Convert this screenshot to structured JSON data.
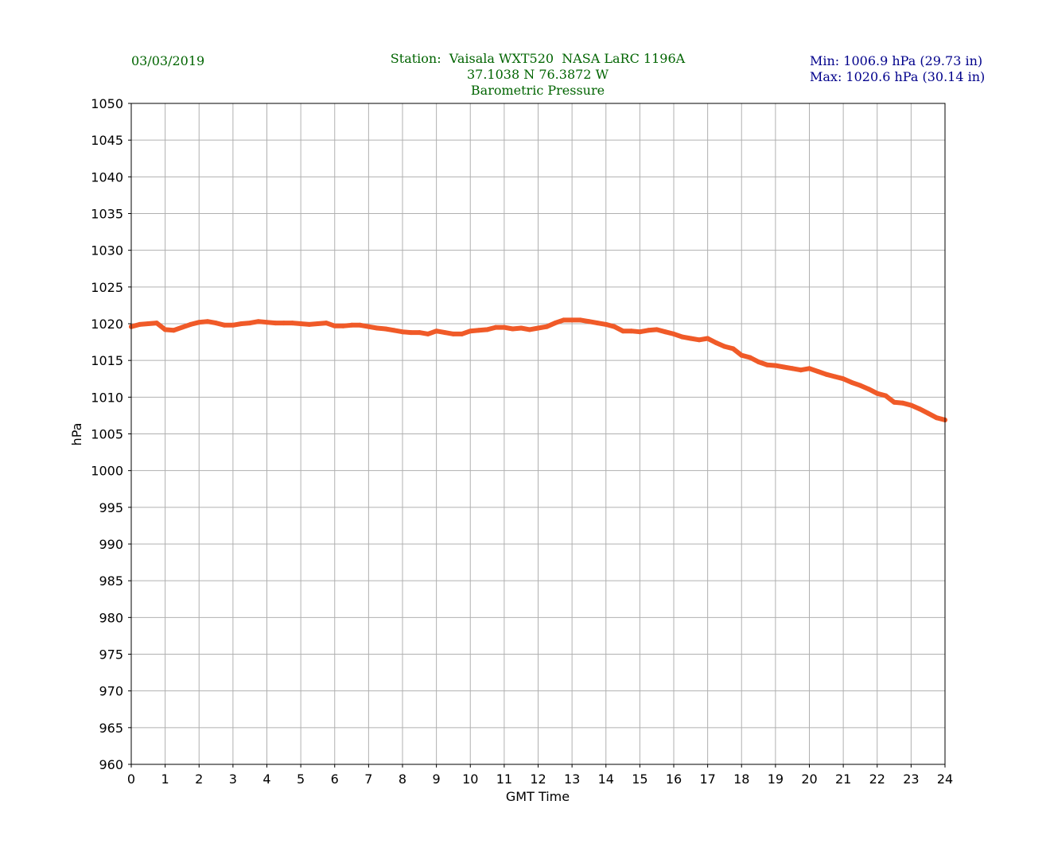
{
  "header": {
    "date": "03/03/2019",
    "station_line": "Station:  Vaisala WXT520  NASA LaRC 1196A",
    "coords_line": "37.1038 N 76.3872 W",
    "variable_line": "Barometric Pressure",
    "min_line": "Min: 1006.9 hPa (29.73 in)",
    "max_line": "Max: 1020.6 hPa (30.14 in)"
  },
  "colors": {
    "series": "#f05a28",
    "header_green": "#006400",
    "header_navy": "#00008b",
    "grid": "#b0b0b0"
  },
  "chart_data": {
    "type": "line",
    "xlabel": "GMT Time",
    "ylabel": "hPa",
    "xlim": [
      0,
      24
    ],
    "ylim": [
      960,
      1050
    ],
    "xticks": [
      0,
      1,
      2,
      3,
      4,
      5,
      6,
      7,
      8,
      9,
      10,
      11,
      12,
      13,
      14,
      15,
      16,
      17,
      18,
      19,
      20,
      21,
      22,
      23,
      24
    ],
    "yticks": [
      960,
      965,
      970,
      975,
      980,
      985,
      990,
      995,
      1000,
      1005,
      1010,
      1015,
      1020,
      1025,
      1030,
      1035,
      1040,
      1045,
      1050
    ],
    "grid": true,
    "series": [
      {
        "x": [
          0,
          0.25,
          0.5,
          0.75,
          1,
          1.25,
          1.5,
          1.75,
          2,
          2.25,
          2.5,
          2.75,
          3,
          3.25,
          3.5,
          3.75,
          4,
          4.25,
          4.5,
          4.75,
          5,
          5.25,
          5.5,
          5.75,
          6,
          6.25,
          6.5,
          6.75,
          7,
          7.25,
          7.5,
          7.75,
          8,
          8.25,
          8.5,
          8.75,
          9,
          9.25,
          9.5,
          9.75,
          10,
          10.25,
          10.5,
          10.75,
          11,
          11.25,
          11.5,
          11.75,
          12,
          12.25,
          12.5,
          12.75,
          13,
          13.25,
          13.5,
          13.75,
          14,
          14.25,
          14.5,
          14.75,
          15,
          15.25,
          15.5,
          15.75,
          16,
          16.25,
          16.5,
          16.75,
          17,
          17.25,
          17.5,
          17.75,
          18,
          18.25,
          18.5,
          18.75,
          19,
          19.25,
          19.5,
          19.75,
          20,
          20.25,
          20.5,
          20.75,
          21,
          21.25,
          21.5,
          21.75,
          22,
          22.25,
          22.5,
          22.75,
          23,
          23.25,
          23.5,
          23.75,
          24
        ],
        "y": [
          1019.6,
          1019.9,
          1020.0,
          1020.1,
          1019.2,
          1019.1,
          1019.5,
          1019.9,
          1020.2,
          1020.3,
          1020.1,
          1019.8,
          1019.8,
          1020.0,
          1020.1,
          1020.3,
          1020.2,
          1020.1,
          1020.1,
          1020.1,
          1020.0,
          1019.9,
          1020.0,
          1020.1,
          1019.7,
          1019.7,
          1019.8,
          1019.8,
          1019.6,
          1019.4,
          1019.3,
          1019.1,
          1018.9,
          1018.8,
          1018.8,
          1018.6,
          1019.0,
          1018.8,
          1018.6,
          1018.6,
          1019.0,
          1019.1,
          1019.2,
          1019.5,
          1019.5,
          1019.3,
          1019.4,
          1019.2,
          1019.4,
          1019.6,
          1020.1,
          1020.5,
          1020.5,
          1020.5,
          1020.3,
          1020.1,
          1019.9,
          1019.6,
          1019.0,
          1019.0,
          1018.9,
          1019.1,
          1019.2,
          1018.9,
          1018.6,
          1018.2,
          1018.0,
          1017.8,
          1018.0,
          1017.4,
          1016.9,
          1016.6,
          1015.7,
          1015.4,
          1014.8,
          1014.4,
          1014.3,
          1014.1,
          1013.9,
          1013.7,
          1013.9,
          1013.5,
          1013.1,
          1012.8,
          1012.5,
          1012.0,
          1011.6,
          1011.1,
          1010.5,
          1010.2,
          1009.3,
          1009.2,
          1008.9,
          1008.4,
          1007.8,
          1007.2,
          1006.9
        ]
      }
    ]
  }
}
